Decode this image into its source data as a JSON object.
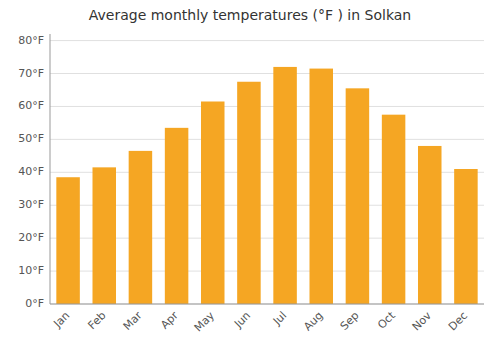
{
  "chart_data": {
    "type": "bar",
    "title": "Average monthly temperatures (°F ) in Solkan",
    "categories": [
      "Jan",
      "Feb",
      "Mar",
      "Apr",
      "May",
      "Jun",
      "Jul",
      "Aug",
      "Sep",
      "Oct",
      "Nov",
      "Dec"
    ],
    "values": [
      38.5,
      41.5,
      46.5,
      53.5,
      61.5,
      67.5,
      72.0,
      71.5,
      65.5,
      57.5,
      48.0,
      41.0
    ],
    "color": "#F5A623",
    "ylim": [
      0,
      82
    ],
    "yticks": [
      {
        "value": 0,
        "label": "0°F"
      },
      {
        "value": 10,
        "label": "10°F"
      },
      {
        "value": 20,
        "label": "20°F"
      },
      {
        "value": 30,
        "label": "30°F"
      },
      {
        "value": 40,
        "label": "40°F"
      },
      {
        "value": 50,
        "label": "50°F"
      },
      {
        "value": 60,
        "label": "60°F"
      },
      {
        "value": 70,
        "label": "70°F"
      },
      {
        "value": 80,
        "label": "80°F"
      }
    ],
    "grid": true
  }
}
